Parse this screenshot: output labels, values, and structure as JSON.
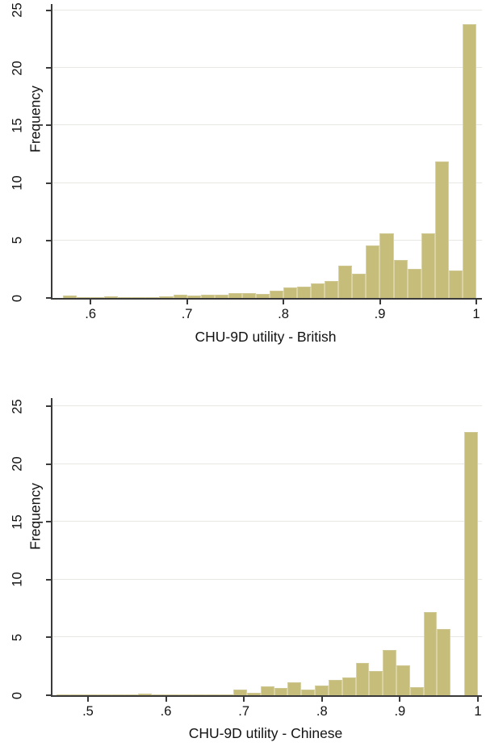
{
  "page": {
    "background": "#ffffff",
    "description": "Two stacked Stata-style histograms of CHU-9D utility scores"
  },
  "colors": {
    "bar_fill": "#c6bd7b",
    "bar_edge": "#d8d2a4",
    "axis_line": "#3a3a3a",
    "grid_line": "#e8e8e2",
    "text": "#121212"
  },
  "chart_data": [
    {
      "type": "bar",
      "subtype": "histogram",
      "xlabel": "CHU-9D utility - British",
      "ylabel": "Frequency",
      "legend": "none",
      "grid": true,
      "bin_start": 0.5714,
      "bin_width": 0.0142857,
      "values": [
        0.2,
        0.1,
        0.1,
        0.15,
        0.05,
        0.1,
        0.05,
        0.15,
        0.25,
        0.2,
        0.25,
        0.3,
        0.4,
        0.45,
        0.35,
        0.6,
        0.9,
        1.0,
        1.3,
        1.5,
        2.8,
        2.1,
        4.6,
        5.6,
        3.3,
        2.5,
        5.6,
        11.9,
        2.4,
        23.8
      ],
      "x_domain": [
        0.5605,
        1.0059
      ],
      "ylim": [
        0,
        25.56
      ],
      "x_ticks": [
        0.6,
        0.7,
        0.8,
        0.9,
        1.0
      ],
      "x_tick_labels": [
        ".6",
        ".7",
        ".8",
        ".9",
        "1"
      ],
      "y_ticks": [
        0,
        5,
        10,
        15,
        20,
        25
      ],
      "y_tick_labels": [
        "0",
        "5",
        "10",
        "15",
        "20",
        "25"
      ]
    },
    {
      "type": "bar",
      "subtype": "histogram",
      "xlabel": "CHU-9D utility - Chinese",
      "ylabel": "Frequency",
      "legend": "none",
      "grid": true,
      "bin_start": 0.46,
      "bin_width": 0.0174194,
      "values": [
        0.05,
        0.1,
        0.05,
        0.05,
        0.1,
        0.1,
        0.15,
        0.05,
        0.1,
        0.05,
        0.1,
        0.05,
        0.1,
        0.5,
        0.2,
        0.8,
        0.6,
        1.1,
        0.5,
        0.85,
        1.3,
        1.55,
        2.8,
        2.1,
        3.9,
        2.6,
        0.7,
        7.2,
        5.7,
        0,
        22.8
      ],
      "x_domain": [
        0.4545,
        1.0052
      ],
      "ylim": [
        0,
        25.7
      ],
      "x_ticks": [
        0.5,
        0.6,
        0.7,
        0.8,
        0.9,
        1.0
      ],
      "x_tick_labels": [
        ".5",
        ".6",
        ".7",
        ".8",
        ".9",
        "1"
      ],
      "y_ticks": [
        0,
        5,
        10,
        15,
        20,
        25
      ],
      "y_tick_labels": [
        "0",
        "5",
        "10",
        "15",
        "20",
        "25"
      ]
    }
  ]
}
